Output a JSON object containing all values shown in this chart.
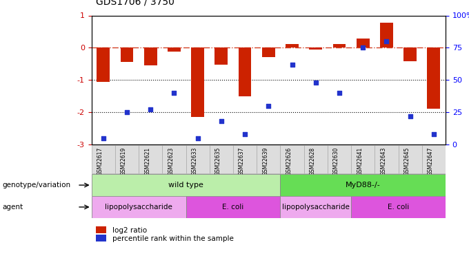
{
  "title": "GDS1706 / 3750",
  "samples": [
    "GSM22617",
    "GSM22619",
    "GSM22621",
    "GSM22623",
    "GSM22633",
    "GSM22635",
    "GSM22637",
    "GSM22639",
    "GSM22626",
    "GSM22628",
    "GSM22630",
    "GSM22641",
    "GSM22643",
    "GSM22645",
    "GSM22647"
  ],
  "log2_ratio": [
    -1.05,
    -0.45,
    -0.55,
    -0.12,
    -2.15,
    -0.52,
    -1.5,
    -0.28,
    0.12,
    -0.05,
    0.12,
    0.28,
    0.78,
    -0.42,
    -1.9
  ],
  "percentile": [
    5,
    25,
    27,
    40,
    5,
    18,
    8,
    30,
    62,
    48,
    40,
    75,
    80,
    22,
    8
  ],
  "ylim_left": [
    -3.0,
    1.0
  ],
  "ylim_right": [
    0,
    100
  ],
  "bar_color": "#CC2200",
  "dot_color": "#2233CC",
  "bar_width": 0.55,
  "genotype_groups": [
    {
      "label": "wild type",
      "start": 0,
      "end": 7,
      "color": "#BBEEAA"
    },
    {
      "label": "MyD88-/-",
      "start": 8,
      "end": 14,
      "color": "#66DD55"
    }
  ],
  "agent_groups": [
    {
      "label": "lipopolysaccharide",
      "start": 0,
      "end": 3,
      "color": "#EEAAEE"
    },
    {
      "label": "E. coli",
      "start": 4,
      "end": 7,
      "color": "#DD55DD"
    },
    {
      "label": "lipopolysaccharide",
      "start": 8,
      "end": 10,
      "color": "#EEAAEE"
    },
    {
      "label": "E. coli",
      "start": 11,
      "end": 14,
      "color": "#DD55DD"
    }
  ],
  "legend_items": [
    {
      "label": "log2 ratio",
      "color": "#CC2200"
    },
    {
      "label": "percentile rank within the sample",
      "color": "#2233CC"
    }
  ],
  "left_yticks": [
    1,
    0,
    -1,
    -2,
    -3
  ],
  "right_yticks": [
    100,
    75,
    50,
    25,
    0
  ],
  "genotype_label": "genotype/variation",
  "agent_label": "agent",
  "background_color": "#ffffff",
  "sample_bg_color": "#DDDDDD",
  "sample_border_color": "#AAAAAA"
}
